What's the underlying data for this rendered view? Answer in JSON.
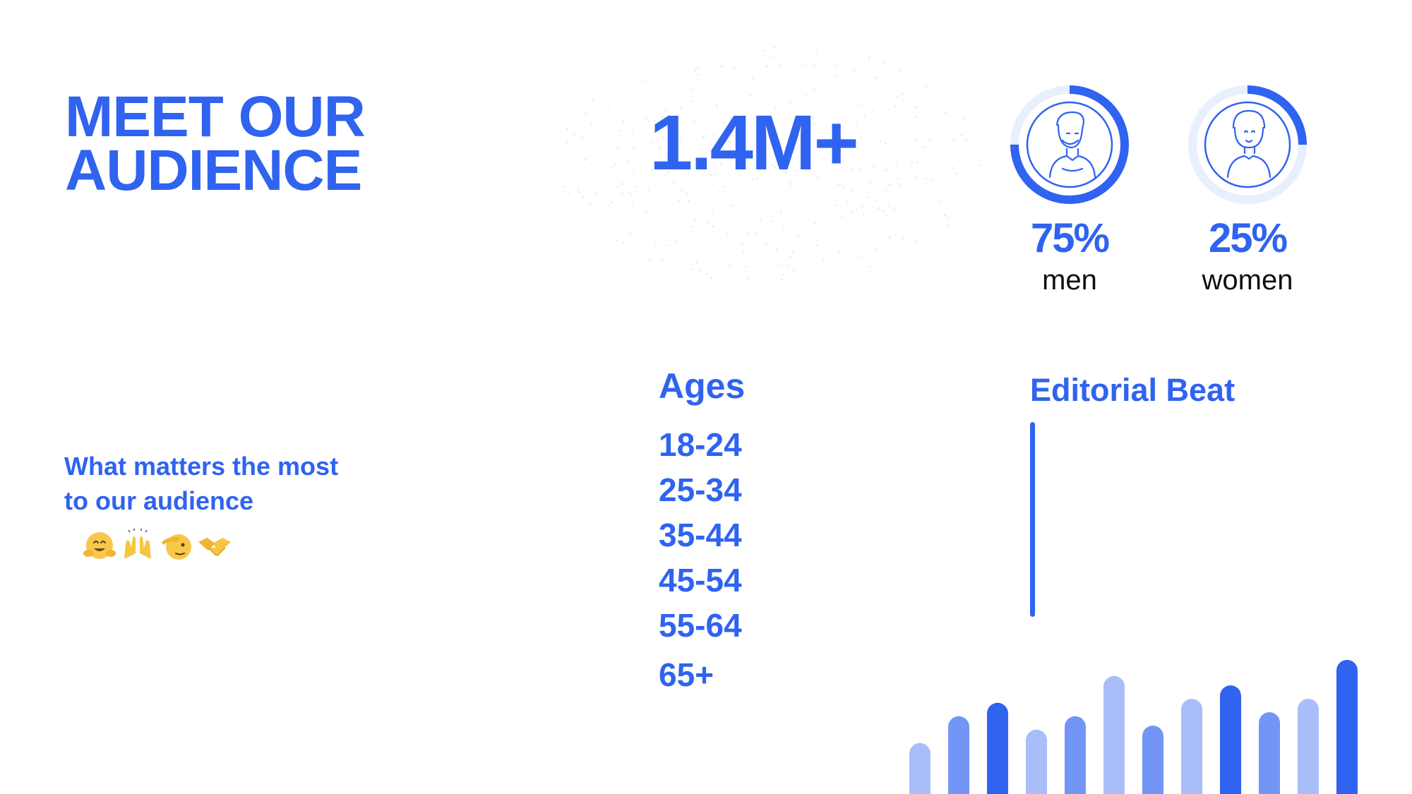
{
  "title": {
    "line1": "MEET OUR",
    "line2": "AUDIENCE"
  },
  "stats": {
    "total": "1.4M+",
    "gender": [
      {
        "pct_label": "75%",
        "label": "men",
        "fraction": 0.75
      },
      {
        "pct_label": "25%",
        "label": "women",
        "fraction": 0.25
      }
    ]
  },
  "matters": {
    "heading_line1": "What matters the most",
    "heading_line2": "to our audience",
    "emojis": [
      "hugging-face-icon",
      "raising-hands-icon",
      "saluting-face-icon",
      "handshake-icon"
    ]
  },
  "ages": {
    "heading": "Ages",
    "ranges": [
      "18-24",
      "25-34",
      "35-44",
      "45-54",
      "55-64",
      "65+"
    ]
  },
  "editorial": {
    "heading": "Editorial Beat"
  },
  "decor_bars": {
    "levels": [
      0.38,
      0.58,
      0.68,
      0.48,
      0.58,
      0.88,
      0.51,
      0.71,
      0.81,
      0.61,
      0.71,
      1.0
    ],
    "colors": [
      "#a9bdf8",
      "#7396f6",
      "#2f63f0",
      "#a9bdf8",
      "#7396f6",
      "#a9bdf8",
      "#7396f6",
      "#a9bdf8",
      "#2f63f0",
      "#7396f6",
      "#a9bdf8",
      "#2f63f0"
    ]
  },
  "colors": {
    "accent": "#2f63f0",
    "accent_light": "#e8effe",
    "text_dark": "#0e0e14"
  }
}
